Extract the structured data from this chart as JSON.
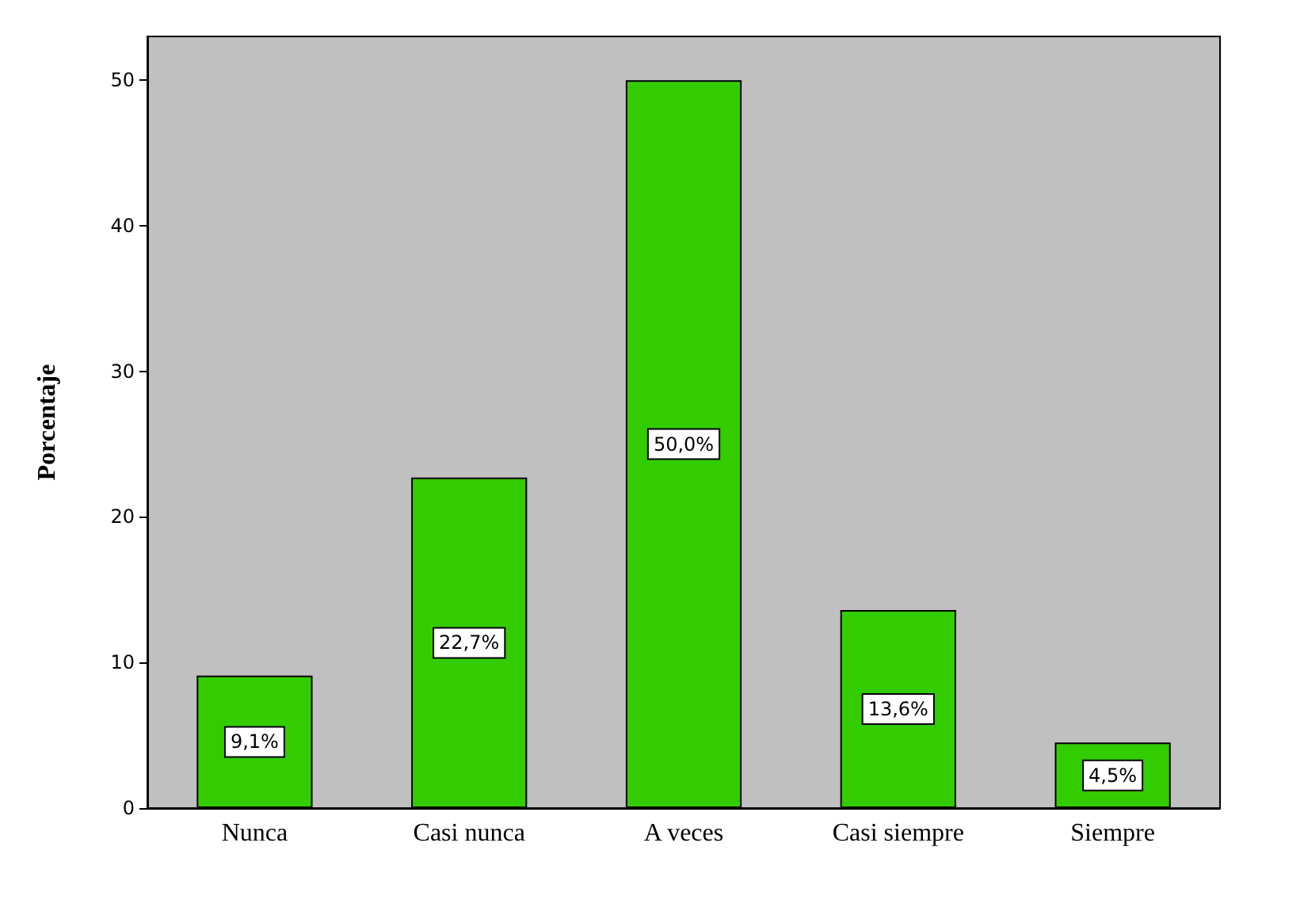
{
  "chart_data": {
    "type": "bar",
    "ylabel": "Porcentaje",
    "categories": [
      "Nunca",
      "Casi nunca",
      "A veces",
      "Casi siempre",
      "Siempre"
    ],
    "values": [
      9.1,
      22.7,
      50.0,
      13.6,
      4.5
    ],
    "value_labels": [
      "9,1%",
      "22,7%",
      "50,0%",
      "13,6%",
      "4,5%"
    ],
    "color": "#33cc00",
    "ylim": [
      0,
      53
    ],
    "yticks": [
      0,
      10,
      20,
      30,
      40,
      50
    ],
    "grid": false
  }
}
